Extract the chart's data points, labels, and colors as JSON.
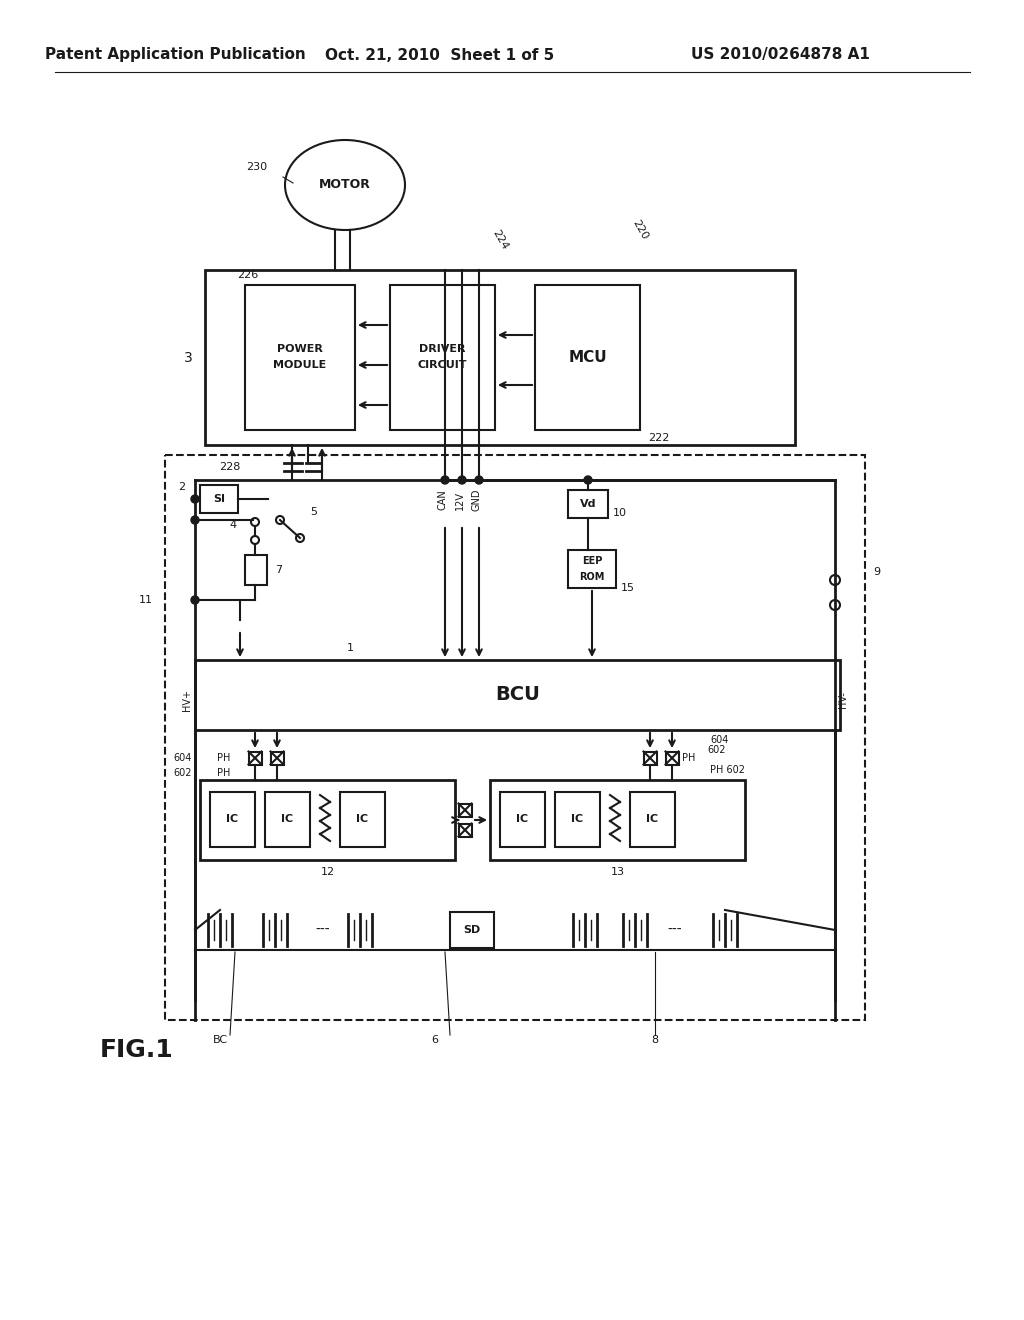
{
  "bg_color": "#ffffff",
  "line_color": "#1a1a1a",
  "header_left": "Patent Application Publication",
  "header_center": "Oct. 21, 2010  Sheet 1 of 5",
  "header_right": "US 2010/0264878 A1",
  "fig_label": "FIG.1"
}
